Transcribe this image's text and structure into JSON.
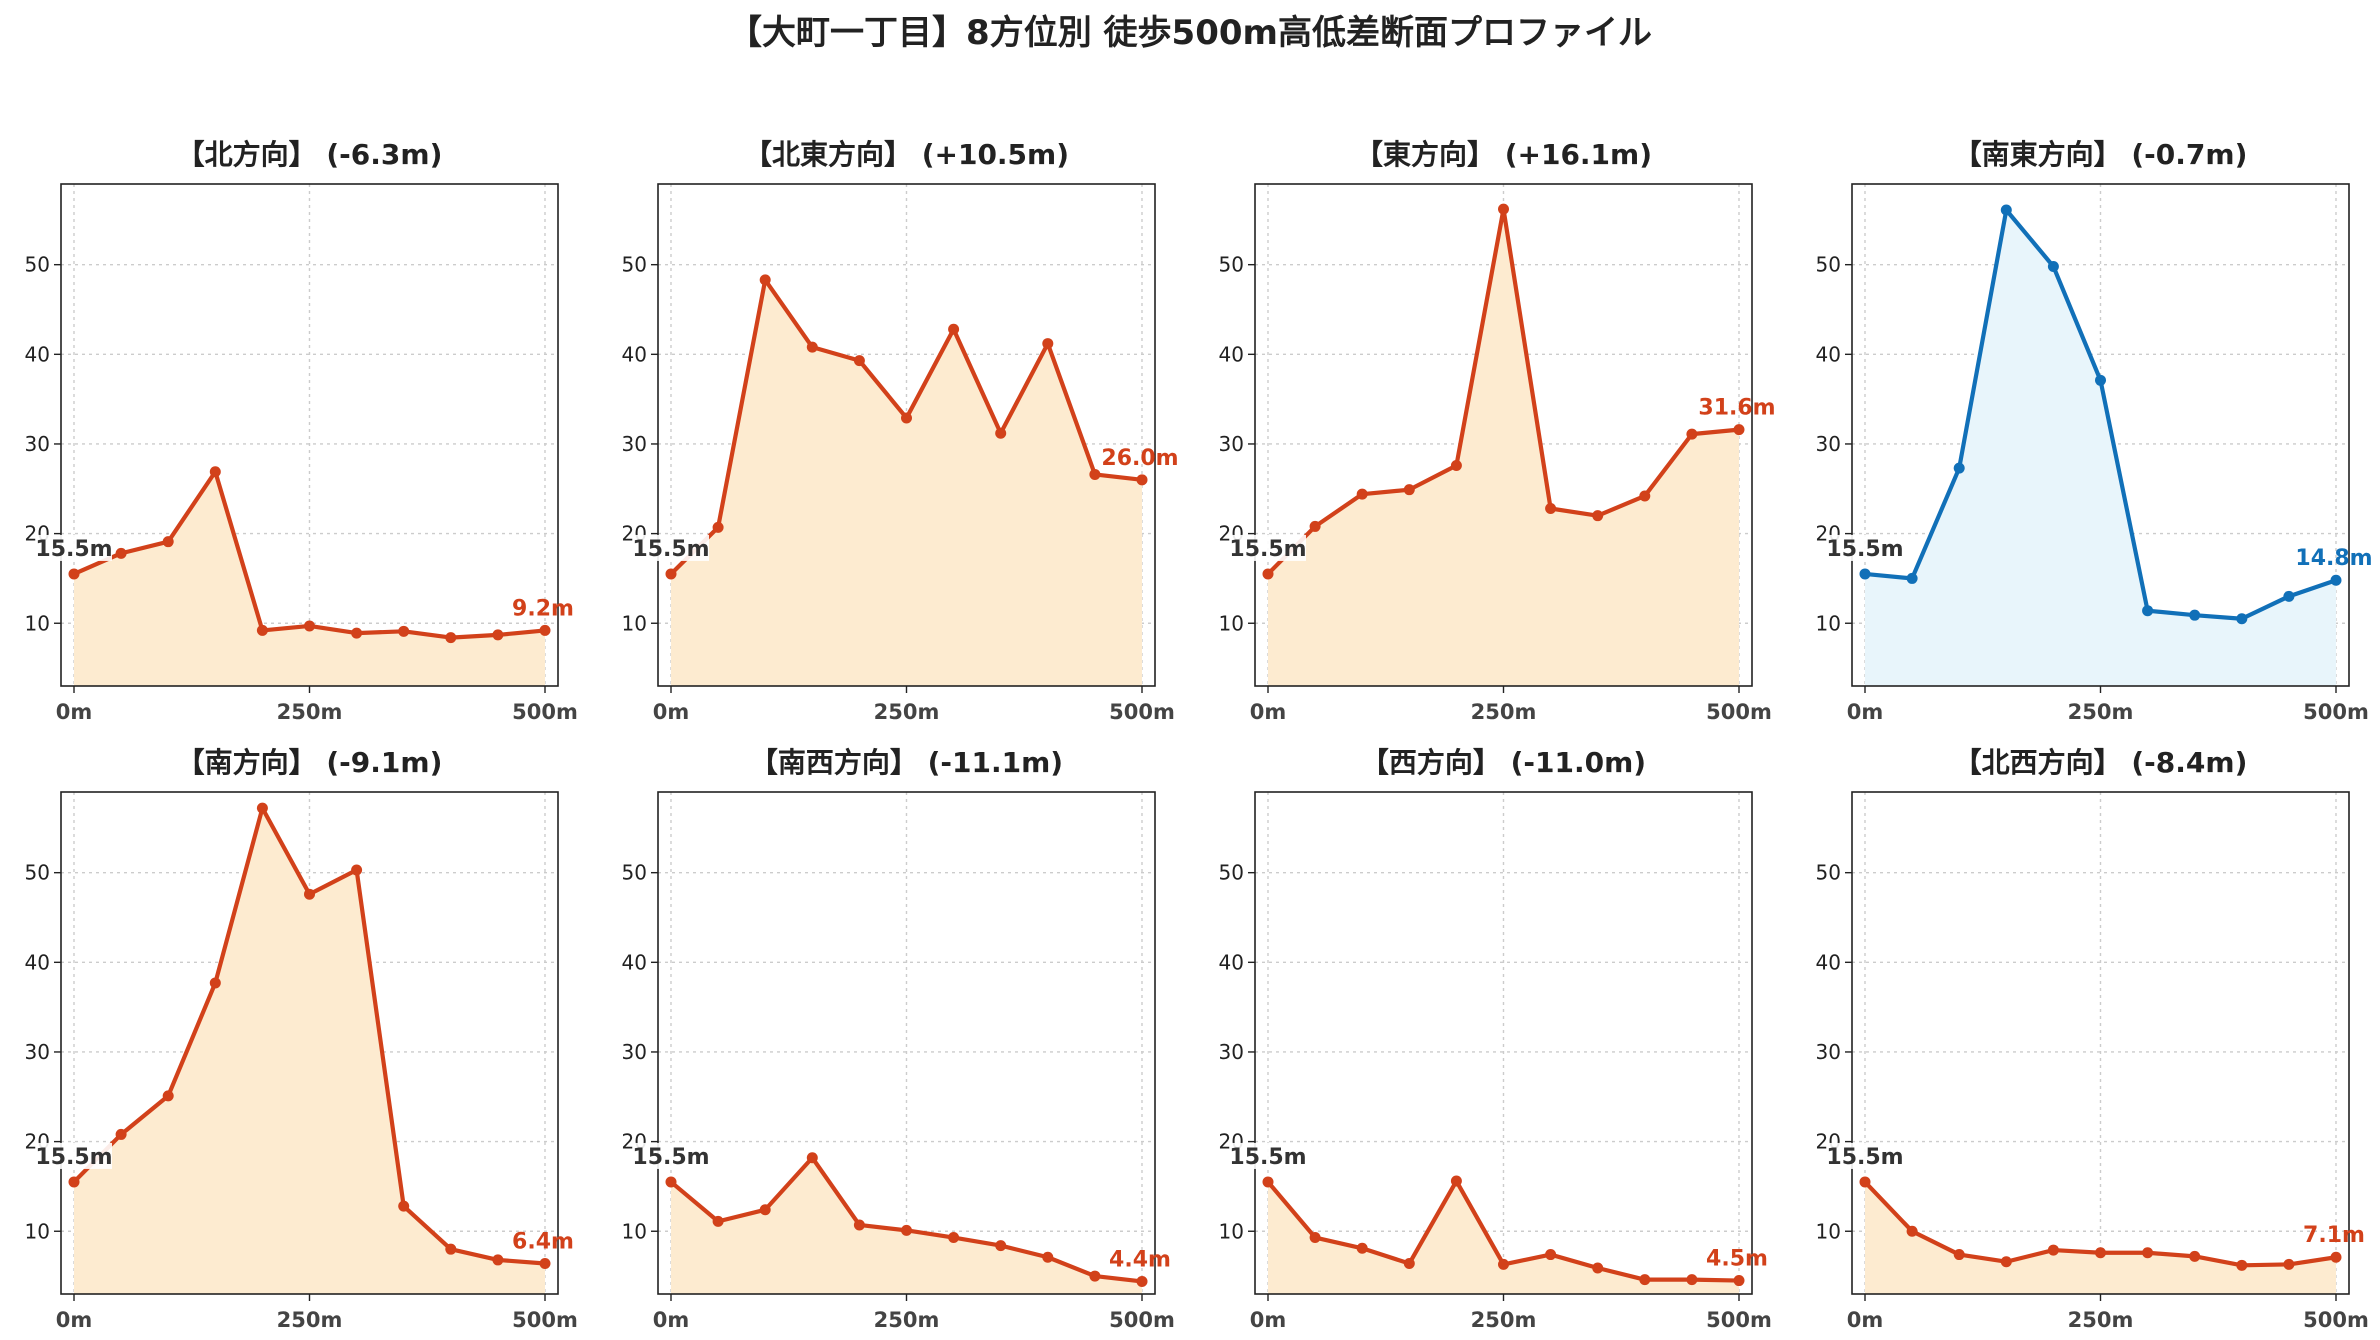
{
  "figure": {
    "title": "【大町一丁目】8方位別 徒歩500m高低差断面プロファイル",
    "colors": {
      "down": "#d2411a",
      "down_fill": "#fdebd0",
      "up": "#1170b8",
      "up_fill": "#e8f5fb",
      "start_label": "#333333",
      "grid": "#cccccc"
    }
  },
  "chart_data": [
    {
      "type": "area",
      "title": "【北方向】 (-6.3m)",
      "x": [
        0,
        50,
        100,
        150,
        200,
        250,
        300,
        350,
        400,
        450,
        500
      ],
      "values": [
        15.5,
        17.8,
        19.1,
        26.9,
        9.2,
        9.7,
        8.9,
        9.1,
        8.4,
        8.7,
        9.2
      ],
      "start_label": "15.5m",
      "end_label": "9.2m",
      "trend": "down",
      "ylim": [
        3,
        59
      ],
      "yticks": [
        10,
        20,
        30,
        40,
        50
      ],
      "xticks": [
        "0m",
        "250m",
        "500m"
      ],
      "grid": true
    },
    {
      "type": "area",
      "title": "【北東方向】 (+10.5m)",
      "x": [
        0,
        50,
        100,
        150,
        200,
        250,
        300,
        350,
        400,
        450,
        500
      ],
      "values": [
        15.5,
        20.7,
        48.3,
        40.8,
        39.3,
        32.9,
        42.8,
        31.2,
        41.2,
        26.6,
        26.0
      ],
      "start_label": "15.5m",
      "end_label": "26.0m",
      "trend": "down",
      "ylim": [
        3,
        59
      ],
      "yticks": [
        10,
        20,
        30,
        40,
        50
      ],
      "xticks": [
        "0m",
        "250m",
        "500m"
      ],
      "grid": true
    },
    {
      "type": "area",
      "title": "【東方向】 (+16.1m)",
      "x": [
        0,
        50,
        100,
        150,
        200,
        250,
        300,
        350,
        400,
        450,
        500
      ],
      "values": [
        15.5,
        20.8,
        24.4,
        24.9,
        27.6,
        56.2,
        22.8,
        22.0,
        24.2,
        31.1,
        31.6
      ],
      "start_label": "15.5m",
      "end_label": "31.6m",
      "trend": "down",
      "ylim": [
        3,
        59
      ],
      "yticks": [
        10,
        20,
        30,
        40,
        50
      ],
      "xticks": [
        "0m",
        "250m",
        "500m"
      ],
      "grid": true
    },
    {
      "type": "area",
      "title": "【南東方向】 (-0.7m)",
      "x": [
        0,
        50,
        100,
        150,
        200,
        250,
        300,
        350,
        400,
        450,
        500
      ],
      "values": [
        15.5,
        15.0,
        27.3,
        56.1,
        49.8,
        37.1,
        11.4,
        10.9,
        10.5,
        13.0,
        14.8
      ],
      "start_label": "15.5m",
      "end_label": "14.8m",
      "trend": "up",
      "ylim": [
        3,
        59
      ],
      "yticks": [
        10,
        20,
        30,
        40,
        50
      ],
      "xticks": [
        "0m",
        "250m",
        "500m"
      ],
      "grid": true
    },
    {
      "type": "area",
      "title": "【南方向】 (-9.1m)",
      "x": [
        0,
        50,
        100,
        150,
        200,
        250,
        300,
        350,
        400,
        450,
        500
      ],
      "values": [
        15.5,
        20.8,
        25.1,
        37.7,
        57.2,
        47.6,
        50.3,
        12.8,
        8.0,
        6.8,
        6.4
      ],
      "start_label": "15.5m",
      "end_label": "6.4m",
      "trend": "down",
      "ylim": [
        3,
        59
      ],
      "yticks": [
        10,
        20,
        30,
        40,
        50
      ],
      "xticks": [
        "0m",
        "250m",
        "500m"
      ],
      "grid": true
    },
    {
      "type": "area",
      "title": "【南西方向】 (-11.1m)",
      "x": [
        0,
        50,
        100,
        150,
        200,
        250,
        300,
        350,
        400,
        450,
        500
      ],
      "values": [
        15.5,
        11.1,
        12.4,
        18.2,
        10.7,
        10.1,
        9.3,
        8.4,
        7.1,
        5.0,
        4.4
      ],
      "start_label": "15.5m",
      "end_label": "4.4m",
      "trend": "down",
      "ylim": [
        3,
        59
      ],
      "yticks": [
        10,
        20,
        30,
        40,
        50
      ],
      "xticks": [
        "0m",
        "250m",
        "500m"
      ],
      "grid": true
    },
    {
      "type": "area",
      "title": "【西方向】 (-11.0m)",
      "x": [
        0,
        50,
        100,
        150,
        200,
        250,
        300,
        350,
        400,
        450,
        500
      ],
      "values": [
        15.5,
        9.3,
        8.1,
        6.4,
        15.6,
        6.3,
        7.4,
        5.9,
        4.6,
        4.6,
        4.5
      ],
      "start_label": "15.5m",
      "end_label": "4.5m",
      "trend": "down",
      "ylim": [
        3,
        59
      ],
      "yticks": [
        10,
        20,
        30,
        40,
        50
      ],
      "xticks": [
        "0m",
        "250m",
        "500m"
      ],
      "grid": true
    },
    {
      "type": "area",
      "title": "【北西方向】 (-8.4m)",
      "x": [
        0,
        50,
        100,
        150,
        200,
        250,
        300,
        350,
        400,
        450,
        500
      ],
      "values": [
        15.5,
        10.0,
        7.4,
        6.6,
        7.9,
        7.6,
        7.6,
        7.2,
        6.2,
        6.3,
        7.1
      ],
      "start_label": "15.5m",
      "end_label": "7.1m",
      "trend": "down",
      "ylim": [
        3,
        59
      ],
      "yticks": [
        10,
        20,
        30,
        40,
        50
      ],
      "xticks": [
        "0m",
        "250m",
        "500m"
      ],
      "grid": true
    }
  ]
}
